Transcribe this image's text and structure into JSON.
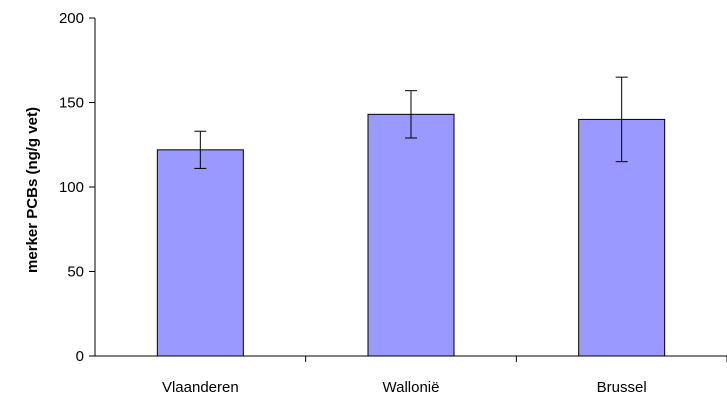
{
  "chart_data": {
    "type": "bar",
    "categories": [
      "Vlaanderen",
      "Wallonië",
      "Brussel"
    ],
    "values": [
      122,
      143,
      140
    ],
    "error_low": [
      111,
      129,
      115
    ],
    "error_high": [
      133,
      157,
      165
    ],
    "xlabel": "",
    "ylabel": "merker PCBs (ng/g vet)",
    "ylim": [
      0,
      200
    ],
    "yticks": [
      0,
      50,
      100,
      150,
      200
    ],
    "ytick_labels": [
      "0",
      "50",
      "100",
      "150",
      "200"
    ],
    "grid": false,
    "legend": "none",
    "bar_color": "#9999ff",
    "bar_edge_color": "#000000"
  }
}
